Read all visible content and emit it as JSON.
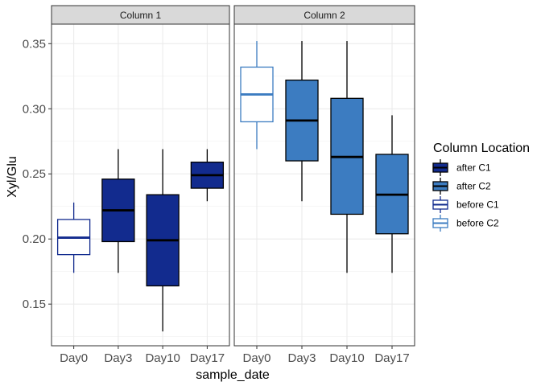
{
  "chart_data": {
    "type": "boxplot",
    "xlabel": "sample_date",
    "ylabel": "Xyl/Glu",
    "ylim": [
      0.118,
      0.365
    ],
    "y_ticks": [
      0.15,
      0.2,
      0.25,
      0.3,
      0.35
    ],
    "y_tick_labels": [
      "0.15",
      "0.20",
      "0.25",
      "0.30",
      "0.35"
    ],
    "categories": [
      "Day0",
      "Day3",
      "Day10",
      "Day17"
    ],
    "grid": true,
    "legend": {
      "title": "Column Location",
      "placement": "right",
      "entries": [
        {
          "label": "after C1",
          "fill": "#122b8e",
          "stroke": "#000000"
        },
        {
          "label": "after C2",
          "fill": "#3c7cc1",
          "stroke": "#000000"
        },
        {
          "label": "before C1",
          "fill": "#ffffff",
          "stroke": "#122b8e"
        },
        {
          "label": "before C2",
          "fill": "#ffffff",
          "stroke": "#3c7cc1"
        }
      ]
    },
    "panels": [
      {
        "title": "Column 1",
        "boxes": [
          {
            "category": "Day0",
            "group": "before C1",
            "min": 0.174,
            "q1": 0.188,
            "median": 0.201,
            "q3": 0.215,
            "max": 0.228
          },
          {
            "category": "Day3",
            "group": "after C1",
            "min": 0.174,
            "q1": 0.198,
            "median": 0.222,
            "q3": 0.246,
            "max": 0.269
          },
          {
            "category": "Day10",
            "group": "after C1",
            "min": 0.129,
            "q1": 0.164,
            "median": 0.199,
            "q3": 0.234,
            "max": 0.269
          },
          {
            "category": "Day17",
            "group": "after C1",
            "min": 0.229,
            "q1": 0.239,
            "median": 0.249,
            "q3": 0.259,
            "max": 0.269
          }
        ]
      },
      {
        "title": "Column 2",
        "boxes": [
          {
            "category": "Day0",
            "group": "before C2",
            "min": 0.269,
            "q1": 0.29,
            "median": 0.311,
            "q3": 0.332,
            "max": 0.352
          },
          {
            "category": "Day3",
            "group": "after C2",
            "min": 0.229,
            "q1": 0.26,
            "median": 0.291,
            "q3": 0.322,
            "max": 0.352
          },
          {
            "category": "Day10",
            "group": "after C2",
            "min": 0.174,
            "q1": 0.219,
            "median": 0.263,
            "q3": 0.308,
            "max": 0.352
          },
          {
            "category": "Day17",
            "group": "after C2",
            "min": 0.174,
            "q1": 0.204,
            "median": 0.234,
            "q3": 0.265,
            "max": 0.295
          }
        ]
      }
    ]
  }
}
